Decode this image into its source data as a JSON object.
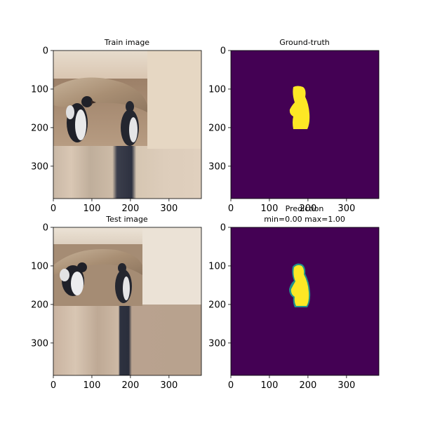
{
  "chart_data": [
    {
      "type": "image",
      "title": "Train image",
      "xlim": [
        0,
        384
      ],
      "ylim": [
        384,
        0
      ],
      "xticks": [
        0,
        100,
        200,
        300
      ],
      "yticks": [
        0,
        100,
        200,
        300
      ],
      "content": "photo of two penguins on rocky ground with edge-padded borders"
    },
    {
      "type": "heatmap",
      "title": "Ground-truth",
      "xlim": [
        0,
        384
      ],
      "ylim": [
        384,
        0
      ],
      "xticks": [
        0,
        100,
        200,
        300
      ],
      "yticks": [
        0,
        100,
        200,
        300
      ],
      "colormap": "viridis",
      "colors": {
        "low": "#440154",
        "high": "#fde725"
      }
    },
    {
      "type": "image",
      "title": "Test image",
      "xlim": [
        0,
        384
      ],
      "ylim": [
        384,
        0
      ],
      "xticks": [
        0,
        100,
        200,
        300
      ],
      "yticks": [
        0,
        100,
        200,
        300
      ],
      "content": "photo of two penguins on rocky ground with edge-padded borders"
    },
    {
      "type": "heatmap",
      "title": "Prediction",
      "subtitle": "min=0.00 max=1.00",
      "xlim": [
        0,
        384
      ],
      "ylim": [
        384,
        0
      ],
      "xticks": [
        0,
        100,
        200,
        300
      ],
      "yticks": [
        0,
        100,
        200,
        300
      ],
      "colormap": "viridis",
      "value_min": 0.0,
      "value_max": 1.0,
      "colors": {
        "low": "#440154",
        "high": "#fde725",
        "edge": "#21918c"
      }
    }
  ]
}
